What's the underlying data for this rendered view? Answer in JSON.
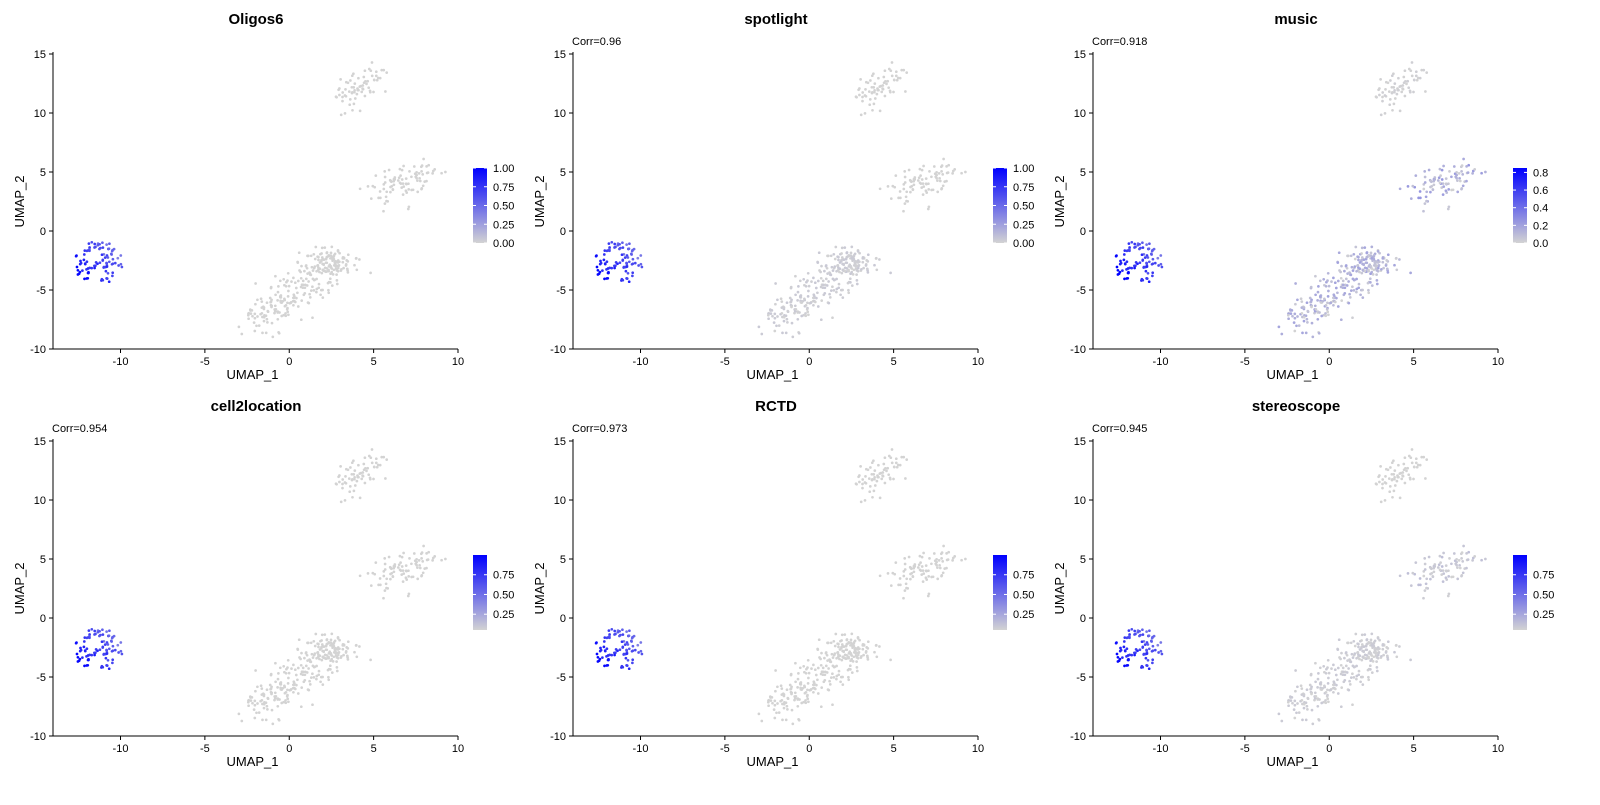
{
  "figure": {
    "description_free": true
  },
  "chart_data": [
    {
      "type": "scatter",
      "title": "Oligos6",
      "annotation": "",
      "xlabel": "UMAP_1",
      "ylabel": "UMAP_2",
      "xlim": [
        -14,
        10
      ],
      "ylim": [
        -10,
        15
      ],
      "xticks": [
        "-10",
        "-5",
        "0",
        "5",
        "10"
      ],
      "yticks": [
        "-10",
        "-5",
        "0",
        "5",
        "10",
        "15"
      ],
      "legend": {
        "position": "right",
        "low_color": "#d3d3d3",
        "high_color": "#0000ff",
        "min": 0,
        "max": 1.0,
        "ticks": [
          "0.00",
          "0.25",
          "0.50",
          "0.75",
          "1.00"
        ],
        "tick_values": [
          0,
          0.25,
          0.5,
          0.75,
          1.0
        ]
      },
      "cluster_intensity": {
        "left": 0.85,
        "center": 0.0,
        "top": 0.0,
        "right": 0.0
      },
      "grid": false
    },
    {
      "type": "scatter",
      "title": "spotlight",
      "annotation": "Corr=0.96",
      "xlabel": "UMAP_1",
      "ylabel": "UMAP_2",
      "xlim": [
        -14,
        10
      ],
      "ylim": [
        -10,
        15
      ],
      "xticks": [
        "-10",
        "-5",
        "0",
        "5",
        "10"
      ],
      "yticks": [
        "-10",
        "-5",
        "0",
        "5",
        "10",
        "15"
      ],
      "legend": {
        "position": "right",
        "low_color": "#d3d3d3",
        "high_color": "#0000ff",
        "min": 0,
        "max": 1.0,
        "ticks": [
          "0.00",
          "0.25",
          "0.50",
          "0.75",
          "1.00"
        ],
        "tick_values": [
          0,
          0.25,
          0.5,
          0.75,
          1.0
        ]
      },
      "cluster_intensity": {
        "left": 0.85,
        "center": 0.05,
        "top": 0.0,
        "right": 0.0
      },
      "grid": false
    },
    {
      "type": "scatter",
      "title": "music",
      "annotation": "Corr=0.918",
      "xlabel": "UMAP_1",
      "ylabel": "UMAP_2",
      "xlim": [
        -14,
        10
      ],
      "ylim": [
        -10,
        15
      ],
      "xticks": [
        "-10",
        "-5",
        "0",
        "5",
        "10"
      ],
      "yticks": [
        "-10",
        "-5",
        "0",
        "5",
        "10",
        "15"
      ],
      "legend": {
        "position": "right",
        "low_color": "#d3d3d3",
        "high_color": "#0000ff",
        "min": 0,
        "max": 0.85,
        "ticks": [
          "0.0",
          "0.2",
          "0.4",
          "0.6",
          "0.8"
        ],
        "tick_values": [
          0,
          0.2,
          0.4,
          0.6,
          0.8
        ]
      },
      "cluster_intensity": {
        "left": 0.75,
        "center": 0.2,
        "top": 0.02,
        "right": 0.25
      },
      "grid": false
    },
    {
      "type": "scatter",
      "title": "cell2location",
      "annotation": "Corr=0.954",
      "xlabel": "UMAP_1",
      "ylabel": "UMAP_2",
      "xlim": [
        -14,
        10
      ],
      "ylim": [
        -10,
        15
      ],
      "xticks": [
        "-10",
        "-5",
        "0",
        "5",
        "10"
      ],
      "yticks": [
        "-10",
        "-5",
        "0",
        "5",
        "10",
        "15"
      ],
      "legend": {
        "position": "right",
        "low_color": "#d3d3d3",
        "high_color": "#0000ff",
        "min": 0.05,
        "max": 1.0,
        "ticks": [
          "0.25",
          "0.50",
          "0.75"
        ],
        "tick_values": [
          0.25,
          0.5,
          0.75
        ]
      },
      "cluster_intensity": {
        "left": 0.85,
        "center": 0.0,
        "top": 0.0,
        "right": 0.0
      },
      "grid": false
    },
    {
      "type": "scatter",
      "title": "RCTD",
      "annotation": "Corr=0.973",
      "xlabel": "UMAP_1",
      "ylabel": "UMAP_2",
      "xlim": [
        -14,
        10
      ],
      "ylim": [
        -10,
        15
      ],
      "xticks": [
        "-10",
        "-5",
        "0",
        "5",
        "10"
      ],
      "yticks": [
        "-10",
        "-5",
        "0",
        "5",
        "10",
        "15"
      ],
      "legend": {
        "position": "right",
        "low_color": "#d3d3d3",
        "high_color": "#0000ff",
        "min": 0.05,
        "max": 1.0,
        "ticks": [
          "0.25",
          "0.50",
          "0.75"
        ],
        "tick_values": [
          0.25,
          0.5,
          0.75
        ]
      },
      "cluster_intensity": {
        "left": 0.85,
        "center": 0.0,
        "top": 0.0,
        "right": 0.0
      },
      "grid": false
    },
    {
      "type": "scatter",
      "title": "stereoscope",
      "annotation": "Corr=0.945",
      "xlabel": "UMAP_1",
      "ylabel": "UMAP_2",
      "xlim": [
        -14,
        10
      ],
      "ylim": [
        -10,
        15
      ],
      "xticks": [
        "-10",
        "-5",
        "0",
        "5",
        "10"
      ],
      "yticks": [
        "-10",
        "-5",
        "0",
        "5",
        "10",
        "15"
      ],
      "legend": {
        "position": "right",
        "low_color": "#d3d3d3",
        "high_color": "#0000ff",
        "min": 0.05,
        "max": 1.0,
        "ticks": [
          "0.25",
          "0.50",
          "0.75"
        ],
        "tick_values": [
          0.25,
          0.5,
          0.75
        ]
      },
      "cluster_intensity": {
        "left": 0.85,
        "center": 0.05,
        "top": 0.0,
        "right": 0.1
      },
      "grid": false
    }
  ]
}
